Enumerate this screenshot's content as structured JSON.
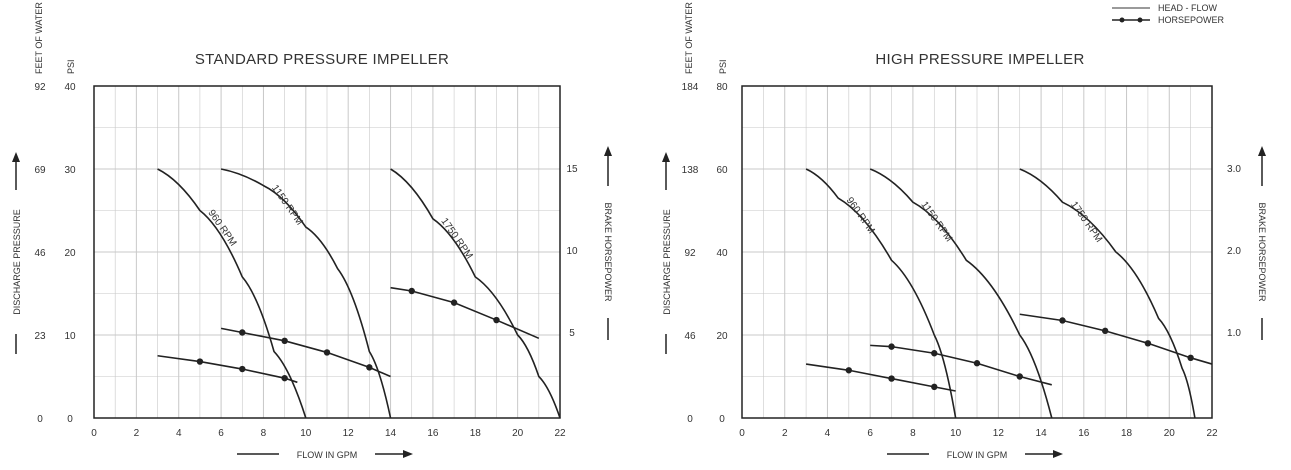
{
  "legend": {
    "items": [
      {
        "label": "HEAD - FLOW",
        "style": "gray-line"
      },
      {
        "label": "HORSEPOWER",
        "style": "line-dots"
      }
    ]
  },
  "chart_data": [
    {
      "type": "line",
      "title": "STANDARD PRESSURE IMPELLER",
      "xlabel": "FLOW IN GPM",
      "xlim": [
        0,
        22
      ],
      "xticks": [
        "0",
        "2",
        "4",
        "6",
        "8",
        "10",
        "12",
        "14",
        "16",
        "18",
        "20",
        "22"
      ],
      "left_axis_units": [
        "FEET OF WATER",
        "PSI"
      ],
      "left_axis_label": "DISCHARGE PRESSURE",
      "ylim_psi": [
        0,
        40
      ],
      "yticks_psi": [
        "0",
        "10",
        "20",
        "30",
        "40"
      ],
      "yticks_feet": [
        "0",
        "23",
        "46",
        "69",
        "92"
      ],
      "right_axis_label": "BRAKE HORSEPOWER",
      "yticks_right": [
        "15",
        "10",
        "5"
      ],
      "grid": true,
      "series": [
        {
          "name": "960 RPM",
          "kind": "head-flow",
          "x": [
            3,
            5,
            7,
            8.5,
            10
          ],
          "y": [
            30,
            25,
            17,
            8,
            0
          ]
        },
        {
          "name": "1150 RPM",
          "kind": "head-flow",
          "x": [
            6,
            8,
            10,
            11.5,
            13,
            14
          ],
          "y": [
            30,
            28,
            23,
            18,
            8,
            0
          ]
        },
        {
          "name": "1750 RPM",
          "kind": "head-flow",
          "x": [
            14,
            16,
            18,
            20,
            21,
            22
          ],
          "y": [
            30,
            24,
            17,
            10,
            5,
            0
          ]
        },
        {
          "kind": "horsepower",
          "x": [
            3,
            5,
            7,
            9,
            9.6
          ],
          "y": [
            7.5,
            6.8,
            5.9,
            4.8,
            4.3
          ],
          "markers_x": [
            5,
            7,
            9
          ]
        },
        {
          "kind": "horsepower",
          "x": [
            6,
            7,
            9,
            11,
            13,
            14
          ],
          "y": [
            10.8,
            10.3,
            9.3,
            7.9,
            6.1,
            5.0
          ],
          "markers_x": [
            7,
            9,
            11,
            13
          ]
        },
        {
          "kind": "horsepower",
          "x": [
            14,
            15,
            17,
            19,
            21
          ],
          "y": [
            15.7,
            15.3,
            13.9,
            11.8,
            9.6
          ],
          "markers_x": [
            15,
            17,
            19
          ]
        }
      ]
    },
    {
      "type": "line",
      "title": "HIGH PRESSURE IMPELLER",
      "xlabel": "FLOW IN GPM",
      "xlim": [
        0,
        22
      ],
      "xticks": [
        "0",
        "2",
        "4",
        "6",
        "8",
        "10",
        "12",
        "14",
        "16",
        "18",
        "20",
        "22"
      ],
      "left_axis_units": [
        "FEET OF WATER",
        "PSI"
      ],
      "left_axis_label": "DISCHARGE PRESSURE",
      "ylim_psi": [
        0,
        80
      ],
      "yticks_psi": [
        "0",
        "20",
        "40",
        "60",
        "80"
      ],
      "yticks_feet": [
        "0",
        "46",
        "92",
        "138",
        "184"
      ],
      "right_axis_label": "BRAKE HORSEPOWER",
      "yticks_right": [
        "3.0",
        "2.0",
        "1.0"
      ],
      "grid": true,
      "series": [
        {
          "name": "960 RPM",
          "kind": "head-flow",
          "x": [
            3,
            4.5,
            7,
            9,
            10
          ],
          "y": [
            60,
            53,
            38,
            20,
            0
          ]
        },
        {
          "name": "1150 RPM",
          "kind": "head-flow",
          "x": [
            6,
            8,
            10.5,
            13,
            14.5
          ],
          "y": [
            60,
            52,
            38,
            20,
            0
          ]
        },
        {
          "name": "1750 RPM",
          "kind": "head-flow",
          "x": [
            13,
            15,
            17.5,
            19.5,
            20.6,
            21.2
          ],
          "y": [
            60,
            52,
            40,
            24,
            12,
            0
          ]
        },
        {
          "kind": "horsepower",
          "x": [
            3,
            5,
            7,
            9,
            10
          ],
          "y": [
            13,
            11.5,
            9.5,
            7.5,
            6.5
          ],
          "markers_x": [
            5,
            7,
            9
          ]
        },
        {
          "kind": "horsepower",
          "x": [
            6,
            7,
            9,
            11,
            13,
            14.5
          ],
          "y": [
            17.5,
            17.2,
            15.6,
            13.2,
            10.0,
            8.0
          ],
          "markers_x": [
            7,
            9,
            11,
            13
          ]
        },
        {
          "kind": "horsepower",
          "x": [
            13,
            15,
            17,
            19,
            21,
            22
          ],
          "y": [
            25,
            23.5,
            21,
            18,
            14.5,
            13
          ],
          "markers_x": [
            15,
            17,
            19,
            21
          ]
        }
      ]
    }
  ]
}
